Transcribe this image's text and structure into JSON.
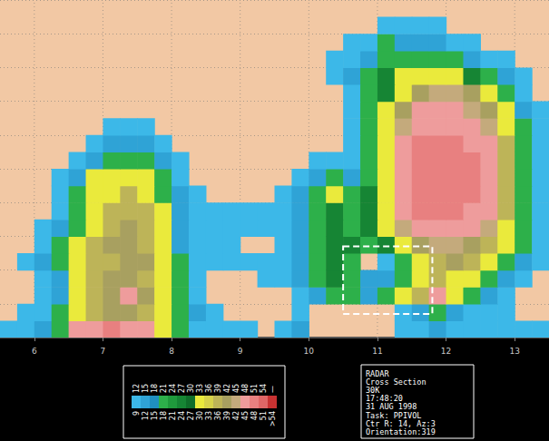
{
  "chart_data": {
    "type": "heatmap",
    "xlim": [
      5.5,
      13.5
    ],
    "ylim": [
      0,
      5
    ],
    "xticks": [
      6,
      7,
      8,
      9,
      10,
      11,
      12,
      13
    ],
    "yticks": [
      0,
      0.5,
      1,
      1.5,
      2,
      2.5,
      3,
      3.5,
      4,
      4.5,
      5
    ],
    "grid": true,
    "tick_labels": "x",
    "x_bins": [
      5.5,
      5.75,
      6,
      6.25,
      6.5,
      6.75,
      7,
      7.25,
      7.5,
      7.75,
      8,
      8.25,
      8.5,
      8.75,
      9,
      9.25,
      9.5,
      9.75,
      10,
      10.25,
      10.5,
      10.75,
      11,
      11.25,
      11.5,
      11.75,
      12,
      12.25,
      12.5,
      12.75,
      13,
      13.25,
      13.5
    ],
    "y_bins": [
      0,
      0.25,
      0.5,
      0.75,
      1,
      1.25,
      1.5,
      1.75,
      2,
      2.25,
      2.5,
      2.75,
      3,
      3.25,
      3.5,
      3.75,
      4,
      4.25,
      4.5,
      4.75,
      5
    ],
    "cells": [
      [
        10,
        10,
        13,
        20,
        47,
        47,
        50,
        47,
        47,
        31,
        20,
        10,
        10,
        10,
        10,
        null,
        10,
        13,
        null,
        null,
        null,
        null,
        null,
        10,
        10,
        13,
        10,
        10,
        10,
        10,
        10,
        10
      ],
      [
        null,
        10,
        10,
        20,
        31,
        37,
        41,
        41,
        37,
        31,
        20,
        13,
        10,
        null,
        null,
        null,
        null,
        10,
        null,
        null,
        null,
        null,
        null,
        10,
        13,
        20,
        13,
        10,
        10,
        10,
        null,
        null
      ],
      [
        null,
        null,
        10,
        13,
        31,
        37,
        41,
        47,
        41,
        31,
        20,
        10,
        null,
        null,
        null,
        null,
        null,
        10,
        13,
        20,
        20,
        13,
        20,
        31,
        37,
        47,
        31,
        20,
        13,
        10,
        null,
        null
      ],
      [
        null,
        null,
        10,
        13,
        31,
        37,
        41,
        41,
        37,
        31,
        20,
        10,
        null,
        null,
        null,
        10,
        10,
        13,
        20,
        25,
        20,
        13,
        13,
        20,
        31,
        37,
        31,
        31,
        20,
        13,
        10,
        null
      ],
      [
        null,
        10,
        13,
        20,
        31,
        37,
        37,
        41,
        41,
        31,
        20,
        10,
        10,
        10,
        10,
        10,
        10,
        13,
        20,
        25,
        20,
        null,
        10,
        20,
        31,
        37,
        41,
        37,
        31,
        20,
        13,
        10
      ],
      [
        null,
        null,
        10,
        20,
        31,
        37,
        41,
        41,
        37,
        31,
        13,
        10,
        10,
        10,
        null,
        null,
        10,
        13,
        20,
        25,
        25,
        20,
        25,
        31,
        41,
        44,
        44,
        41,
        37,
        31,
        20,
        10
      ],
      [
        null,
        null,
        10,
        13,
        20,
        31,
        37,
        41,
        37,
        31,
        13,
        10,
        10,
        10,
        10,
        10,
        10,
        13,
        20,
        25,
        20,
        25,
        31,
        44,
        47,
        47,
        47,
        47,
        44,
        31,
        20,
        10
      ],
      [
        null,
        null,
        null,
        10,
        20,
        31,
        37,
        37,
        37,
        31,
        13,
        10,
        10,
        10,
        10,
        10,
        10,
        13,
        20,
        25,
        20,
        25,
        31,
        47,
        50,
        50,
        50,
        47,
        47,
        37,
        20,
        10
      ],
      [
        null,
        null,
        null,
        10,
        20,
        31,
        31,
        37,
        31,
        20,
        13,
        10,
        null,
        null,
        null,
        null,
        10,
        13,
        20,
        31,
        20,
        25,
        31,
        47,
        50,
        50,
        50,
        50,
        47,
        37,
        20,
        10
      ],
      [
        null,
        null,
        null,
        10,
        13,
        31,
        31,
        31,
        31,
        20,
        10,
        null,
        null,
        null,
        null,
        null,
        null,
        10,
        13,
        20,
        13,
        20,
        31,
        47,
        50,
        50,
        50,
        50,
        47,
        37,
        20,
        10
      ],
      [
        null,
        null,
        null,
        null,
        10,
        13,
        20,
        20,
        20,
        13,
        10,
        null,
        null,
        null,
        null,
        null,
        null,
        null,
        10,
        10,
        10,
        20,
        31,
        47,
        50,
        50,
        50,
        50,
        47,
        37,
        20,
        10
      ],
      [
        null,
        null,
        null,
        null,
        null,
        10,
        13,
        13,
        13,
        10,
        null,
        null,
        null,
        null,
        null,
        null,
        null,
        null,
        null,
        null,
        10,
        20,
        31,
        47,
        50,
        50,
        50,
        47,
        47,
        37,
        20,
        10
      ],
      [
        null,
        null,
        null,
        null,
        null,
        null,
        10,
        10,
        10,
        null,
        null,
        null,
        null,
        null,
        null,
        null,
        null,
        null,
        null,
        null,
        10,
        20,
        31,
        44,
        47,
        47,
        47,
        47,
        44,
        31,
        20,
        10
      ],
      [
        null,
        null,
        null,
        null,
        null,
        null,
        null,
        null,
        null,
        null,
        null,
        null,
        null,
        null,
        null,
        null,
        null,
        null,
        null,
        null,
        10,
        20,
        31,
        41,
        47,
        47,
        47,
        44,
        41,
        31,
        13,
        10
      ],
      [
        null,
        null,
        null,
        null,
        null,
        null,
        null,
        null,
        null,
        null,
        null,
        null,
        null,
        null,
        null,
        null,
        null,
        null,
        null,
        null,
        10,
        20,
        25,
        31,
        41,
        44,
        44,
        41,
        31,
        20,
        10,
        null
      ],
      [
        null,
        null,
        null,
        null,
        null,
        null,
        null,
        null,
        null,
        null,
        null,
        null,
        null,
        null,
        null,
        null,
        null,
        null,
        null,
        10,
        13,
        20,
        25,
        31,
        31,
        31,
        31,
        25,
        20,
        13,
        10,
        null
      ],
      [
        null,
        null,
        null,
        null,
        null,
        null,
        null,
        null,
        null,
        null,
        null,
        null,
        null,
        null,
        null,
        null,
        null,
        null,
        null,
        10,
        10,
        13,
        20,
        20,
        20,
        20,
        20,
        13,
        10,
        10,
        null,
        null
      ],
      [
        null,
        null,
        null,
        null,
        null,
        null,
        null,
        null,
        null,
        null,
        null,
        null,
        null,
        null,
        null,
        null,
        null,
        null,
        null,
        null,
        10,
        10,
        20,
        13,
        13,
        13,
        10,
        10,
        null,
        null,
        null,
        null
      ],
      [
        null,
        null,
        null,
        null,
        null,
        null,
        null,
        null,
        null,
        null,
        null,
        null,
        null,
        null,
        null,
        null,
        null,
        null,
        null,
        null,
        null,
        null,
        10,
        10,
        10,
        10,
        null,
        null,
        null,
        null,
        null,
        null
      ],
      [
        null,
        null,
        null,
        null,
        null,
        null,
        null,
        null,
        null,
        null,
        null,
        null,
        null,
        null,
        null,
        null,
        null,
        null,
        null,
        null,
        null,
        null,
        null,
        null,
        null,
        null,
        null,
        null,
        null,
        null,
        null,
        null
      ]
    ],
    "colorbar": {
      "bins": [
        9,
        12,
        15,
        18,
        21,
        24,
        27,
        30,
        33,
        36,
        39,
        42,
        45,
        48,
        51,
        54
      ],
      "colors": [
        "#3cb8e8",
        "#2fa3d6",
        "#1f8fc0",
        "#2db04a",
        "#1f9a3c",
        "#168534",
        "#0f6e2a",
        "#eaea3c",
        "#d6d24a",
        "#bdb458",
        "#a8a060",
        "#c4aa7c",
        "#ee9c9c",
        "#e88080",
        "#e06666",
        "#c83232"
      ],
      "upper_labels": [
        12,
        15,
        18,
        21,
        24,
        27,
        30,
        33,
        36,
        39,
        42,
        45,
        48,
        51,
        54,
        "—"
      ],
      "lower_labels": [
        9,
        12,
        15,
        18,
        21,
        24,
        27,
        30,
        33,
        36,
        39,
        42,
        45,
        48,
        51,
        ">54"
      ]
    },
    "annotations": [
      {
        "shape": "box",
        "line_style": "dashed",
        "color": "#ffffff",
        "x": [
          10.5,
          11.8
        ],
        "y": [
          0.35,
          1.35
        ]
      }
    ],
    "info_box": [
      "RADAR",
      "Cross Section",
      "30K",
      "17:48:20",
      "31 AUG 1998",
      "Task: PPIVOL",
      "Ctr R: 14, Az:3",
      "Orientation:319"
    ]
  }
}
